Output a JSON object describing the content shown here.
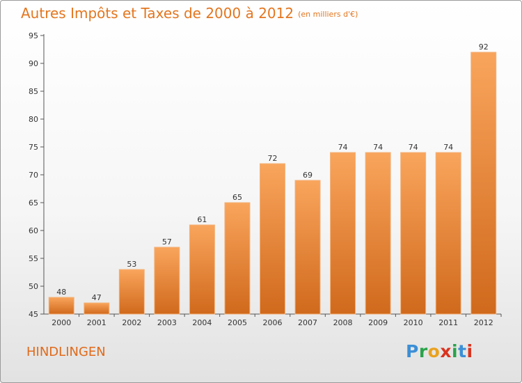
{
  "title": "Autres Impôts et Taxes de 2000 à 2012",
  "unit": "(en milliers d'€)",
  "city": "HINDLINGEN",
  "logo": {
    "letters": [
      "P",
      "r",
      "o",
      "x",
      "i",
      "t",
      "i"
    ],
    "colors": [
      "#3b8fd6",
      "#2aa34a",
      "#e9a11e",
      "#d9331f",
      "#2aa34a",
      "#3b8fd6",
      "#d9331f"
    ]
  },
  "colors": {
    "bar_top": "#f9a55c",
    "bar_bottom": "#d0691c",
    "bar_edge": "#f3b37c",
    "title": "#e3761f",
    "axis": "#555555"
  },
  "chart_data": {
    "type": "bar",
    "title": "Autres Impôts et Taxes de 2000 à 2012",
    "subtitle": "(en milliers d'€)",
    "categories": [
      "2000",
      "2001",
      "2002",
      "2003",
      "2004",
      "2005",
      "2006",
      "2007",
      "2008",
      "2009",
      "2010",
      "2011",
      "2012"
    ],
    "values": [
      48,
      47,
      53,
      57,
      61,
      65,
      72,
      69,
      74,
      74,
      74,
      74,
      92
    ],
    "ylim": [
      45,
      95
    ],
    "yticks": [
      45,
      50,
      55,
      60,
      65,
      70,
      75,
      80,
      85,
      90,
      95
    ],
    "grid": false,
    "data_labels": true
  }
}
